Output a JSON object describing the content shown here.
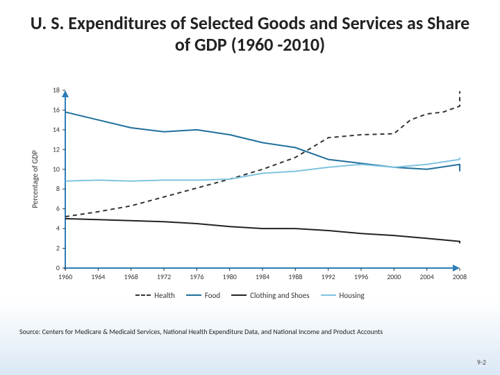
{
  "title": "U. S. Expenditures of Selected Goods and Services as Share of GDP (1960 -2010)",
  "title_fontsize": 26,
  "source": "Source:  Centers for Medicare & Medicaid Services, National Health Expenditure Data, and National Income and Product Accounts",
  "pagenum": "9-2",
  "chart": {
    "type": "line",
    "background_color": "#ffffff",
    "axis_color": "#2c7db8",
    "axis_width": 2,
    "arrowheads": true,
    "ylabel": "Percentage of GDP",
    "label_fontsize": 11,
    "tick_fontsize": 10,
    "ylim": [
      0,
      18
    ],
    "ytick_step": 2,
    "xlim": [
      1960,
      2008
    ],
    "xticks": [
      1960,
      1964,
      1968,
      1972,
      1976,
      1980,
      1984,
      1988,
      1992,
      1996,
      2000,
      2004,
      2008
    ],
    "series": [
      {
        "name": "Health",
        "color": "#333333",
        "width": 2,
        "dash": "6,5",
        "x": [
          1960,
          1964,
          1968,
          1972,
          1976,
          1980,
          1984,
          1988,
          1992,
          1996,
          2000,
          2002,
          2004,
          2006,
          2008,
          2010
        ],
        "y": [
          5.2,
          5.7,
          6.3,
          7.2,
          8.1,
          9.0,
          10.0,
          11.2,
          13.2,
          13.5,
          13.6,
          15.0,
          15.6,
          15.8,
          16.4,
          17.9
        ]
      },
      {
        "name": "Food",
        "color": "#1f6f9a",
        "width": 2,
        "dash": "",
        "x": [
          1960,
          1964,
          1968,
          1972,
          1976,
          1980,
          1984,
          1988,
          1992,
          1996,
          2000,
          2004,
          2008,
          2010
        ],
        "y": [
          15.8,
          15.0,
          14.2,
          13.8,
          14.0,
          13.5,
          12.7,
          12.2,
          11.0,
          10.6,
          10.2,
          10.0,
          10.5,
          9.8
        ]
      },
      {
        "name": "Clothing and Shoes",
        "color": "#222222",
        "width": 2,
        "dash": "",
        "x": [
          1960,
          1964,
          1968,
          1972,
          1976,
          1980,
          1984,
          1988,
          1992,
          1996,
          2000,
          2004,
          2008,
          2010
        ],
        "y": [
          5.0,
          4.9,
          4.8,
          4.7,
          4.5,
          4.2,
          4.0,
          4.0,
          3.8,
          3.5,
          3.3,
          3.0,
          2.7,
          2.5
        ]
      },
      {
        "name": "Housing",
        "color": "#7fc3e0",
        "width": 2,
        "dash": "",
        "x": [
          1960,
          1964,
          1968,
          1972,
          1976,
          1980,
          1984,
          1988,
          1992,
          1996,
          2000,
          2004,
          2008,
          2010
        ],
        "y": [
          8.8,
          8.9,
          8.8,
          8.9,
          8.9,
          9.0,
          9.6,
          9.8,
          10.2,
          10.5,
          10.2,
          10.5,
          11.0,
          11.2
        ]
      }
    ]
  }
}
